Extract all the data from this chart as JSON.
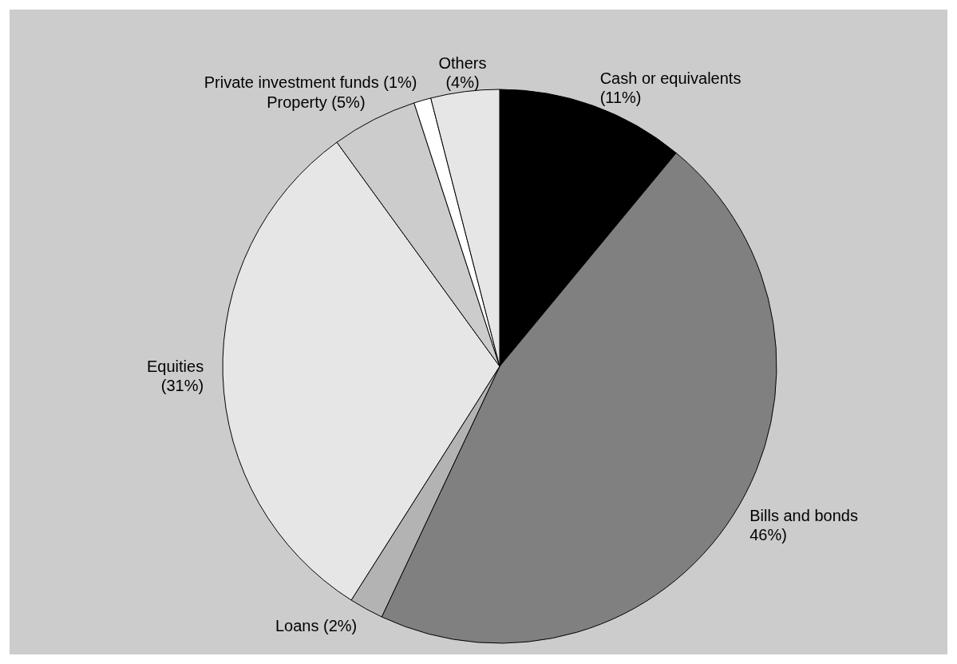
{
  "chart_data": {
    "type": "pie",
    "categories": [
      "Cash or equivalents\n(11%)",
      "Bills and bonds\n46%)",
      "Loans (2%)",
      "Equities\n(31%)",
      "Property (5%)",
      "Private investment funds (1%)",
      "Others\n(4%)"
    ],
    "values": [
      11,
      46,
      2,
      31,
      5,
      1,
      4
    ],
    "colors": [
      "#000000",
      "#808080",
      "#b3b3b3",
      "#e6e6e6",
      "#cccccc",
      "#ffffff",
      "#e6e6e6"
    ]
  }
}
